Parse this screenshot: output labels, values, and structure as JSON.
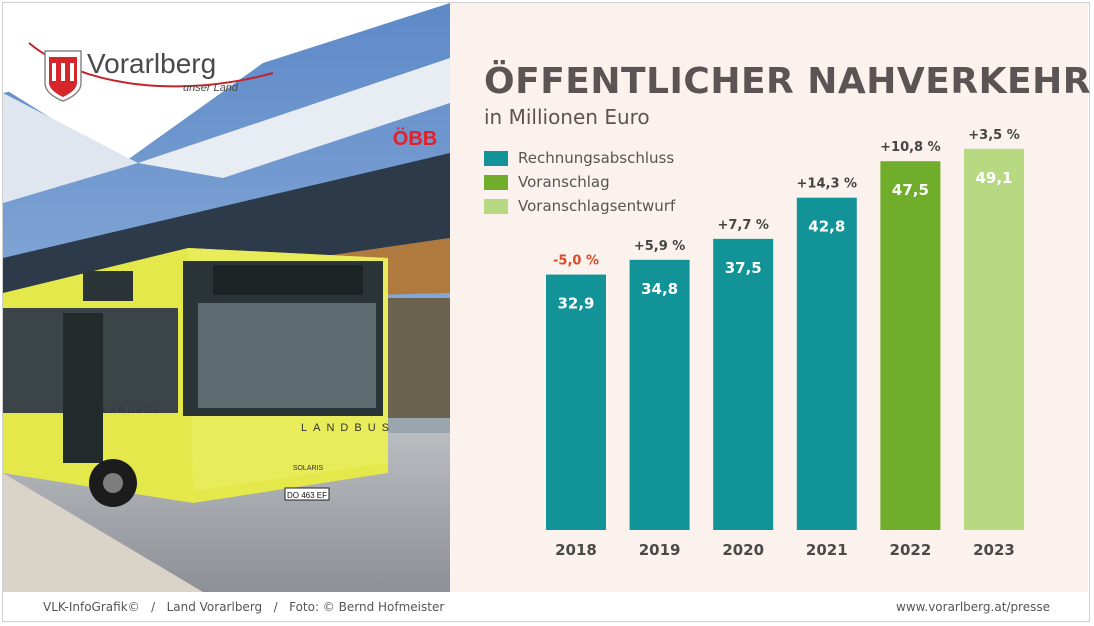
{
  "header": {
    "logo_name": "Vorarlberg",
    "logo_tagline": "unser Land"
  },
  "photo": {
    "station_sign": "ÖBB",
    "bus_brand": "LANDBUS",
    "bus_side": "LANDBUS",
    "bus_model": "SOLARIS",
    "plate": "DO 463 EF"
  },
  "chart_title": "ÖFFENTLICHER NAHVERKEHR",
  "chart_subtitle": "in Millionen Euro",
  "legend": [
    {
      "label": "Rechnungsabschluss",
      "color": "#129398"
    },
    {
      "label": "Voranschlag",
      "color": "#6fad2b"
    },
    {
      "label": "Voranschlagsentwurf",
      "color": "#b7d982"
    }
  ],
  "colors": {
    "negative_change": "#d94a25",
    "change_text": "#444444",
    "panel_bg": "#fbf1ed"
  },
  "chart_data": {
    "type": "bar",
    "categories": [
      "2018",
      "2019",
      "2020",
      "2021",
      "2022",
      "2023"
    ],
    "values": [
      32.9,
      34.8,
      37.5,
      42.8,
      47.5,
      49.1
    ],
    "value_labels": [
      "32,9",
      "34,8",
      "37,5",
      "42,8",
      "47,5",
      "49,1"
    ],
    "change_labels": [
      "-5,0 %",
      "+5,9 %",
      "+7,7 %",
      "+14,3 %",
      "+10,8 %",
      "+3,5 %"
    ],
    "bar_series": [
      "Rechnungsabschluss",
      "Rechnungsabschluss",
      "Rechnungsabschluss",
      "Rechnungsabschluss",
      "Voranschlag",
      "Voranschlagsentwurf"
    ],
    "title": "ÖFFENTLICHER NAHVERKEHR",
    "ylabel": "in Millionen Euro",
    "ylim": [
      0,
      55
    ],
    "grid": false,
    "legend_position": "top-left"
  },
  "footer": {
    "credits": "VLK-InfoGrafik©   /   Land Vorarlberg   /   Foto: © Bernd Hofmeister",
    "url": "www.vorarlberg.at/presse"
  }
}
